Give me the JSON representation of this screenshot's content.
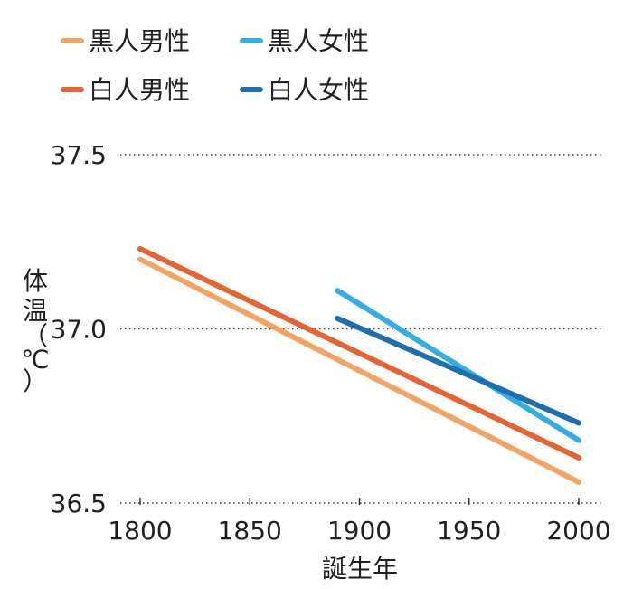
{
  "chart_data": {
    "type": "line",
    "title": "",
    "xlabel": "誕生年",
    "ylabel_chars": [
      "体",
      "温",
      "（",
      "℃",
      "）"
    ],
    "xlim": [
      1800,
      2000
    ],
    "ylim": [
      36.5,
      37.5
    ],
    "x_ticks": [
      1800,
      1850,
      1900,
      1950,
      2000
    ],
    "x_tick_labels": [
      "1800",
      "1850",
      "1900",
      "1950",
      "2000"
    ],
    "y_ticks": [
      36.5,
      37.0,
      37.5
    ],
    "y_tick_labels": [
      "36.5",
      "37.0",
      "37.5"
    ],
    "grid": "horizontal dotted",
    "legend_position": "top-left",
    "series": [
      {
        "name": "黒人男性",
        "color": "#f4a462",
        "x": [
          1800,
          2000
        ],
        "y": [
          37.2,
          36.56
        ]
      },
      {
        "name": "黒人女性",
        "color": "#34ade2",
        "x": [
          1890,
          2000
        ],
        "y": [
          37.11,
          36.68
        ]
      },
      {
        "name": "白人男性",
        "color": "#e66432",
        "x": [
          1800,
          2000
        ],
        "y": [
          37.23,
          36.63
        ]
      },
      {
        "name": "白人女性",
        "color": "#1d6fb0",
        "x": [
          1890,
          2000
        ],
        "y": [
          37.03,
          36.73
        ]
      }
    ]
  }
}
